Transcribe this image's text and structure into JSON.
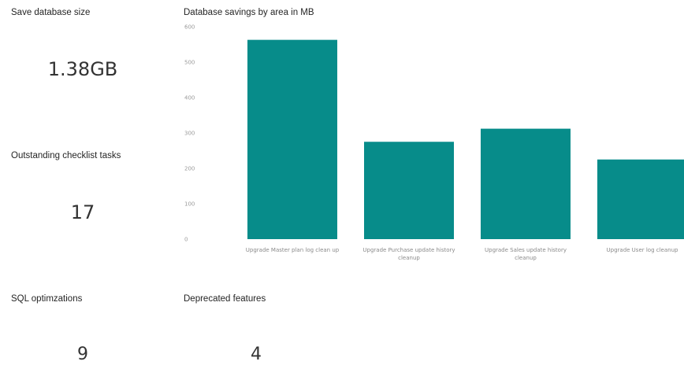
{
  "cards": {
    "db_size": {
      "title": "Save database size",
      "value": "1.38GB"
    },
    "checklist": {
      "title": "Outstanding checklist tasks",
      "value": "17"
    },
    "sql": {
      "title": "SQL optimzations",
      "value": "9"
    },
    "deprecated": {
      "title": "Deprecated features",
      "value": "4"
    }
  },
  "chart_data": {
    "type": "bar",
    "title": "Database savings by area in MB",
    "xlabel": "",
    "ylabel": "",
    "categories": [
      [
        "Upgrade Master plan log clean up"
      ],
      [
        "Upgrade Purchase update history",
        "cleanup"
      ],
      [
        "Upgrade Sales update history",
        "cleanup"
      ],
      [
        "Upgrade User log cleanup"
      ]
    ],
    "values": [
      563,
      275,
      312,
      225
    ],
    "ylim": [
      0,
      600
    ],
    "yticks": [
      0,
      100,
      200,
      300,
      400,
      500,
      600
    ],
    "grid": false,
    "color": "#078c8a"
  }
}
